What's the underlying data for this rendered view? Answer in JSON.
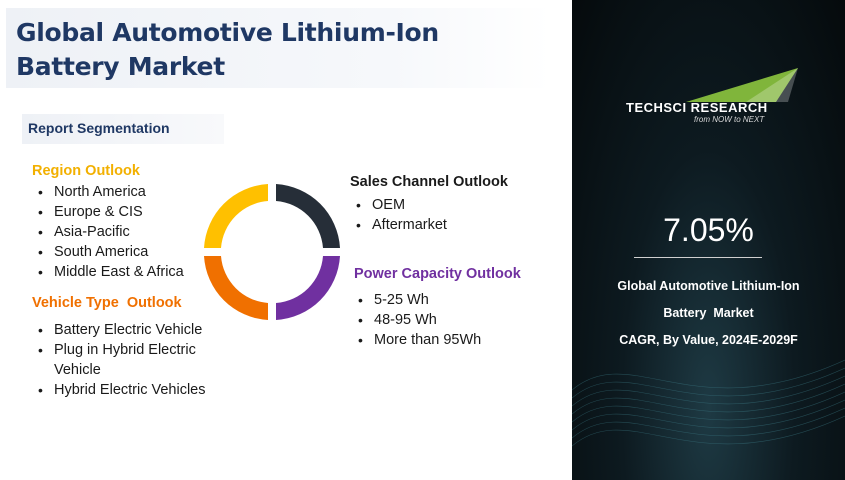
{
  "title": "Global Automotive Lithium-Ion Battery Market",
  "segmentation_label": "Report Segmentation",
  "region": {
    "title": "Region Outlook",
    "items": [
      "North America",
      "Europe & CIS",
      "Asia-Pacific",
      "South America",
      "Middle East & Africa"
    ]
  },
  "vehicle": {
    "title": "Vehicle Type  Outlook",
    "items": [
      "Battery Electric Vehicle",
      "Plug in Hybrid Electric Vehicle",
      "Hybrid Electric Vehicles"
    ]
  },
  "sales": {
    "title": "Sales Channel Outlook",
    "items": [
      "OEM",
      "Aftermarket"
    ]
  },
  "power": {
    "title": "Power Capacity Outlook",
    "items": [
      "5-25 Wh",
      "48-95 Wh",
      "More than 95Wh"
    ]
  },
  "donut_colors": {
    "top_left": "#ffc000",
    "top_right": "#262e38",
    "bottom_right": "#7030a0",
    "bottom_left": "#f07000"
  },
  "logo": {
    "brand": "TECHSCI RESEARCH",
    "tagline": "from NOW to NEXT",
    "accent": "#8dc63f"
  },
  "cagr": {
    "value": "7.05%",
    "line1": "Global Automotive Lithium-Ion",
    "line2": "Battery  Market",
    "line3": "CAGR, By Value, 2024E-2029F"
  }
}
